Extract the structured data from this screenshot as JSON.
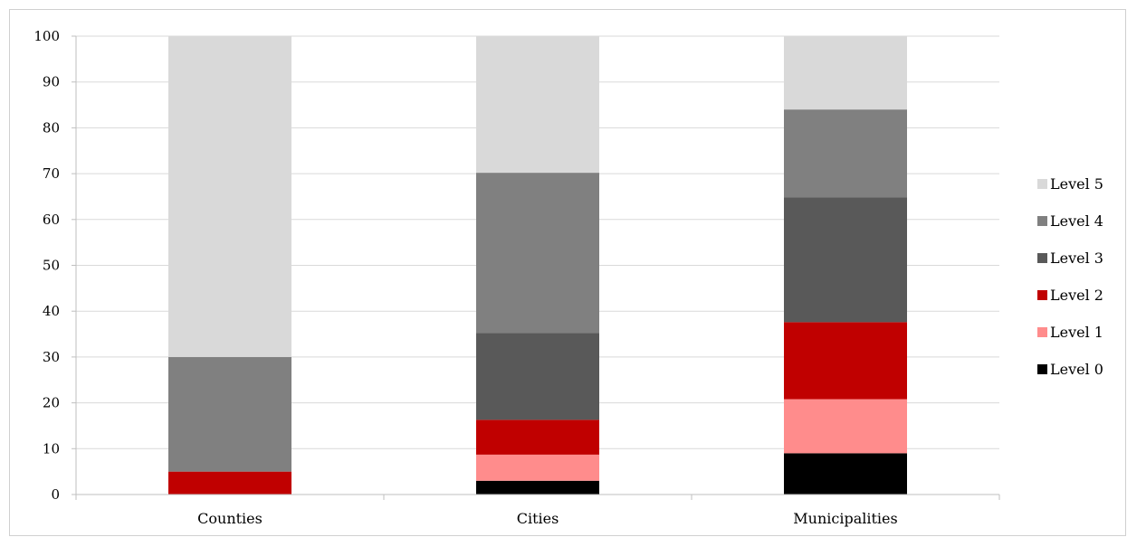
{
  "chart_data": {
    "type": "bar",
    "stacked": true,
    "title": "",
    "xlabel": "",
    "ylabel": "",
    "ylim": [
      0,
      100
    ],
    "yticks": [
      0,
      10,
      20,
      30,
      40,
      50,
      60,
      70,
      80,
      90,
      100
    ],
    "ytick_labels": [
      "0",
      "10",
      "20",
      "30",
      "40",
      "50",
      "60",
      "70",
      "80",
      "90",
      "100"
    ],
    "grid": true,
    "legend": "right",
    "categories": [
      "Counties",
      "Cities",
      "Municipalities"
    ],
    "series": [
      {
        "name": "Level 0",
        "color": "#000000",
        "values": [
          0,
          3.0,
          9.0
        ]
      },
      {
        "name": "Level 1",
        "color": "#ff8c8c",
        "values": [
          0,
          5.7,
          11.8
        ]
      },
      {
        "name": "Level 2",
        "color": "#c00000",
        "values": [
          5.0,
          7.6,
          16.8
        ]
      },
      {
        "name": "Level 3",
        "color": "#595959",
        "values": [
          0,
          18.9,
          27.2
        ]
      },
      {
        "name": "Level 4",
        "color": "#808080",
        "values": [
          25.0,
          35.0,
          19.2
        ]
      },
      {
        "name": "Level 5",
        "color": "#d9d9d9",
        "values": [
          70.0,
          29.8,
          16.0
        ]
      }
    ]
  }
}
